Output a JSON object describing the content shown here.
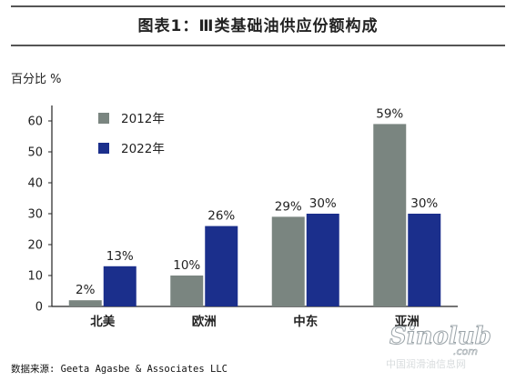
{
  "title": "图表1：Ⅲ类基础油供应份额构成",
  "source": "数据来源: Geeta Agasbe & Associates LLC",
  "watermark": {
    "logo_text": "Sinolub",
    "domain_text": ".com",
    "site_text": "中国润滑油信息网"
  },
  "chart_data": {
    "type": "bar",
    "title": "",
    "ylabel": "百分比 %",
    "xlabel": "",
    "ylim": [
      0,
      65
    ],
    "yticks": [
      0,
      10,
      20,
      30,
      40,
      50,
      60
    ],
    "grid": false,
    "legend_position": "top-left",
    "categories": [
      "北美",
      "欧洲",
      "中东",
      "亚洲"
    ],
    "series": [
      {
        "name": "2012年",
        "color": "#7a8580",
        "values": [
          2,
          10,
          29,
          59
        ],
        "labels": [
          "2%",
          "10%",
          "29%",
          "59%"
        ]
      },
      {
        "name": "2022年",
        "color": "#1b2f8c",
        "values": [
          13,
          26,
          30,
          30
        ],
        "labels": [
          "13%",
          "26%",
          "30%",
          "30%"
        ]
      }
    ]
  }
}
